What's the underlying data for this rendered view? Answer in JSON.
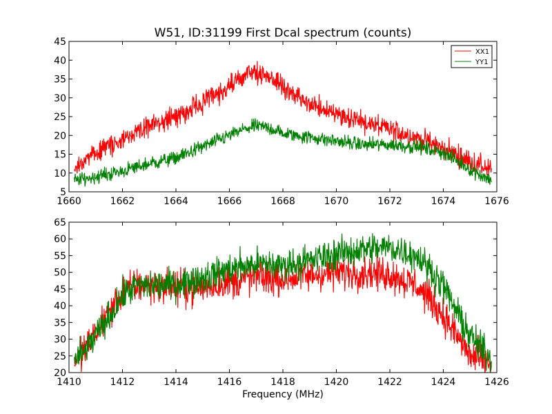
{
  "chart_data": [
    {
      "type": "line",
      "title": "W51, ID:31199 First Dcal spectrum (counts)",
      "xlabel": "",
      "ylabel": "",
      "xlim": [
        1660,
        1676
      ],
      "ylim": [
        5,
        45
      ],
      "xticks": [
        "1660",
        "1662",
        "1664",
        "1666",
        "1668",
        "1670",
        "1672",
        "1674",
        "1676"
      ],
      "yticks": [
        "5",
        "10",
        "15",
        "20",
        "25",
        "30",
        "35",
        "40",
        "45"
      ],
      "grid": false,
      "legend": "top-right",
      "series": [
        {
          "name": "XX1",
          "color": "#ff0000",
          "noise": 1.4,
          "x": [
            1660.2,
            1661.0,
            1662.0,
            1663.0,
            1664.0,
            1665.0,
            1666.0,
            1666.5,
            1667.0,
            1667.5,
            1668.0,
            1669.0,
            1670.0,
            1671.0,
            1672.0,
            1673.0,
            1674.0,
            1675.0,
            1675.8
          ],
          "y": [
            11.5,
            15,
            19,
            22.5,
            25,
            28.5,
            33,
            35.5,
            37,
            35.5,
            33,
            28,
            26,
            23.5,
            21.5,
            19.5,
            16.5,
            13,
            11
          ]
        },
        {
          "name": "YY1",
          "color": "#008000",
          "noise": 0.9,
          "x": [
            1660.2,
            1661.0,
            1662.0,
            1663.0,
            1664.0,
            1665.0,
            1666.0,
            1666.5,
            1667.0,
            1667.5,
            1668.0,
            1669.0,
            1670.0,
            1671.0,
            1672.0,
            1673.0,
            1674.0,
            1675.0,
            1675.8
          ],
          "y": [
            8,
            9,
            10.5,
            12.5,
            14,
            17,
            20,
            21.5,
            22.5,
            22,
            20.5,
            19.5,
            18.5,
            17.5,
            17.5,
            17,
            15.5,
            11,
            8
          ]
        }
      ]
    },
    {
      "type": "line",
      "title": "",
      "xlabel": "Frequency (MHz)",
      "ylabel": "",
      "xlim": [
        1410,
        1426
      ],
      "ylim": [
        20,
        65
      ],
      "xticks": [
        "1410",
        "1412",
        "1414",
        "1416",
        "1418",
        "1420",
        "1422",
        "1424",
        "1426"
      ],
      "yticks": [
        "20",
        "25",
        "30",
        "35",
        "40",
        "45",
        "50",
        "55",
        "60",
        "65"
      ],
      "grid": false,
      "series": [
        {
          "color": "#ff0000",
          "noise": 2.5,
          "x": [
            1410.2,
            1410.5,
            1411.0,
            1411.5,
            1412.0,
            1412.5,
            1413.0,
            1414.0,
            1415.0,
            1416.0,
            1417.0,
            1418.0,
            1419.0,
            1420.0,
            1421.0,
            1422.0,
            1423.0,
            1423.5,
            1424.0,
            1424.5,
            1425.0,
            1425.8
          ],
          "y": [
            23.5,
            26,
            32,
            38,
            44,
            46,
            46,
            45.5,
            45.5,
            47,
            48.5,
            48,
            49,
            50,
            50,
            49.5,
            46,
            42,
            37,
            31,
            25,
            22.5
          ]
        },
        {
          "color": "#008000",
          "noise": 2.3,
          "x": [
            1410.2,
            1410.5,
            1411.0,
            1411.5,
            1412.0,
            1412.5,
            1413.0,
            1414.0,
            1415.0,
            1416.0,
            1417.0,
            1418.0,
            1419.0,
            1420.0,
            1421.0,
            1422.0,
            1423.0,
            1423.5,
            1424.0,
            1424.5,
            1425.0,
            1425.8
          ],
          "y": [
            23.5,
            25.5,
            31,
            36.5,
            43,
            46,
            46,
            46.5,
            48.5,
            51,
            52.5,
            52,
            53.5,
            55.5,
            57,
            57.5,
            55,
            51,
            46,
            38,
            31,
            24
          ]
        }
      ]
    }
  ]
}
